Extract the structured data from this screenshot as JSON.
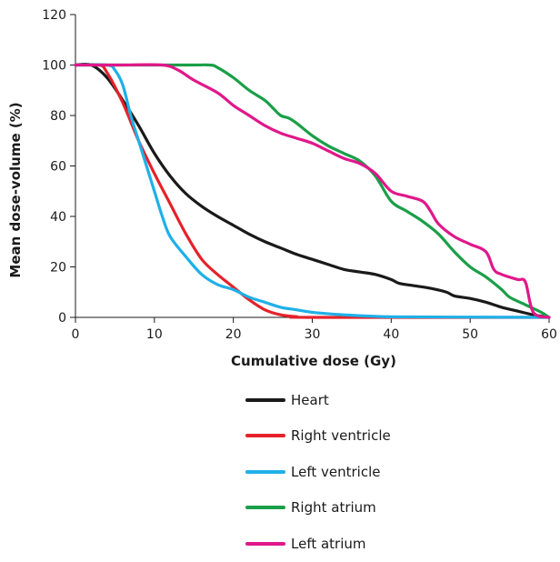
{
  "chart_data": {
    "type": "line",
    "xlabel": "Cumulative dose (Gy)",
    "ylabel": "Mean dose-volume (%)",
    "xlim": [
      0,
      60
    ],
    "ylim": [
      0,
      120
    ],
    "xticks": [
      0,
      10,
      20,
      30,
      40,
      50,
      60
    ],
    "yticks": [
      0,
      20,
      40,
      60,
      80,
      100,
      120
    ],
    "grid": false,
    "legend_position": "below",
    "series": [
      {
        "name": "Heart",
        "color": "#1a1a1a",
        "points": [
          [
            0,
            100
          ],
          [
            2,
            100
          ],
          [
            4,
            95
          ],
          [
            6,
            86
          ],
          [
            8,
            76
          ],
          [
            10,
            65
          ],
          [
            12,
            56
          ],
          [
            14,
            49
          ],
          [
            16,
            44
          ],
          [
            18,
            40
          ],
          [
            20,
            36.5
          ],
          [
            22,
            33
          ],
          [
            24,
            30
          ],
          [
            26,
            27.5
          ],
          [
            28,
            25
          ],
          [
            30,
            23
          ],
          [
            32,
            21
          ],
          [
            34,
            19
          ],
          [
            36,
            18
          ],
          [
            38,
            17
          ],
          [
            40,
            15
          ],
          [
            41,
            13.5
          ],
          [
            43,
            12.5
          ],
          [
            45,
            11.5
          ],
          [
            47,
            10
          ],
          [
            48,
            8.5
          ],
          [
            50,
            7.5
          ],
          [
            52,
            6
          ],
          [
            54,
            4
          ],
          [
            56,
            2.5
          ],
          [
            58,
            1
          ],
          [
            60,
            0
          ]
        ]
      },
      {
        "name": "Right ventricle",
        "color": "#e5222a",
        "points": [
          [
            0,
            100
          ],
          [
            3,
            100
          ],
          [
            4,
            97
          ],
          [
            6,
            85
          ],
          [
            8,
            70
          ],
          [
            10,
            57
          ],
          [
            12,
            45
          ],
          [
            14,
            33
          ],
          [
            16,
            23
          ],
          [
            18,
            17
          ],
          [
            20,
            12
          ],
          [
            22,
            7
          ],
          [
            24,
            3
          ],
          [
            26,
            1
          ],
          [
            28,
            0.3
          ],
          [
            30,
            0
          ],
          [
            60,
            0
          ]
        ]
      },
      {
        "name": "Left ventricle",
        "color": "#1fb0e8",
        "points": [
          [
            0,
            100
          ],
          [
            4,
            100
          ],
          [
            5,
            98
          ],
          [
            6,
            92
          ],
          [
            7,
            80
          ],
          [
            8,
            70
          ],
          [
            9,
            60
          ],
          [
            10,
            50
          ],
          [
            11,
            40
          ],
          [
            12,
            32
          ],
          [
            14,
            24
          ],
          [
            16,
            17
          ],
          [
            18,
            13
          ],
          [
            20,
            11
          ],
          [
            22,
            8
          ],
          [
            24,
            6
          ],
          [
            26,
            4
          ],
          [
            28,
            3
          ],
          [
            30,
            2
          ],
          [
            34,
            1
          ],
          [
            38,
            0.4
          ],
          [
            42,
            0.2
          ],
          [
            60,
            0
          ]
        ]
      },
      {
        "name": "Right atrium",
        "color": "#1a9f48",
        "points": [
          [
            0,
            100
          ],
          [
            14,
            100
          ],
          [
            17,
            100
          ],
          [
            18,
            99
          ],
          [
            20,
            95
          ],
          [
            22,
            90
          ],
          [
            24,
            86
          ],
          [
            25,
            83
          ],
          [
            26,
            80
          ],
          [
            27,
            79
          ],
          [
            28,
            77
          ],
          [
            30,
            72
          ],
          [
            32,
            68
          ],
          [
            34,
            65
          ],
          [
            36,
            62
          ],
          [
            38,
            56
          ],
          [
            40,
            46
          ],
          [
            42,
            42
          ],
          [
            44,
            38
          ],
          [
            46,
            33
          ],
          [
            48,
            26
          ],
          [
            50,
            20
          ],
          [
            52,
            16
          ],
          [
            54,
            11
          ],
          [
            55,
            8
          ],
          [
            57,
            5
          ],
          [
            59,
            2
          ],
          [
            60,
            0
          ]
        ]
      },
      {
        "name": "Left atrium",
        "color": "#e0188a",
        "points": [
          [
            0,
            100
          ],
          [
            4,
            100
          ],
          [
            6,
            100
          ],
          [
            11,
            100
          ],
          [
            13,
            98
          ],
          [
            15,
            94
          ],
          [
            18,
            89
          ],
          [
            20,
            84
          ],
          [
            22,
            80
          ],
          [
            24,
            76
          ],
          [
            26,
            73
          ],
          [
            28,
            71
          ],
          [
            30,
            69
          ],
          [
            32,
            66
          ],
          [
            34,
            63
          ],
          [
            36,
            61
          ],
          [
            38,
            57
          ],
          [
            40,
            50
          ],
          [
            42,
            48
          ],
          [
            44,
            46
          ],
          [
            45,
            42
          ],
          [
            46,
            37
          ],
          [
            48,
            32
          ],
          [
            50,
            29
          ],
          [
            52,
            26
          ],
          [
            53,
            19
          ],
          [
            54,
            17
          ],
          [
            56,
            15
          ],
          [
            57,
            14
          ],
          [
            58,
            2
          ],
          [
            60,
            0
          ]
        ]
      }
    ]
  }
}
